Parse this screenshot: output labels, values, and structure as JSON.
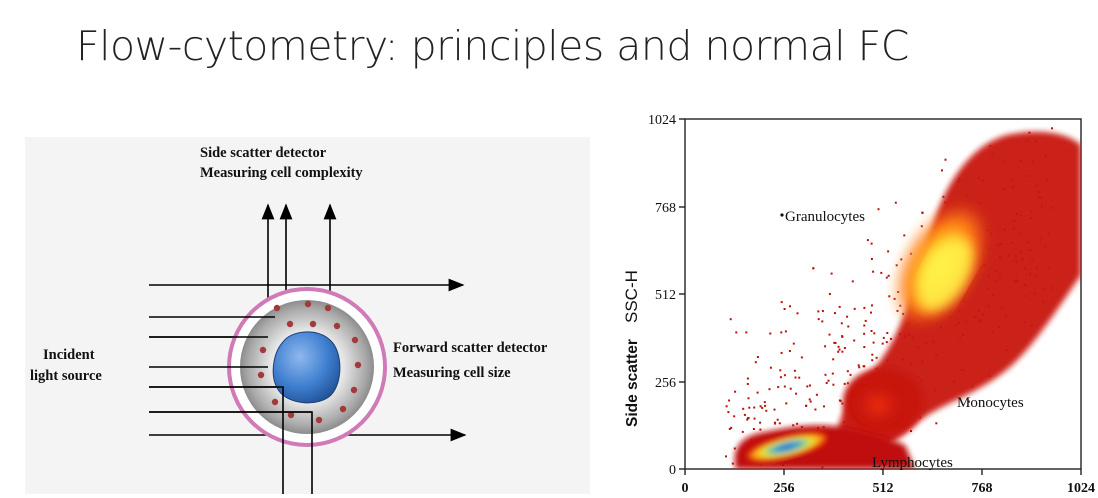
{
  "title": "Flow-cytometry: principles and normal FC",
  "diagram": {
    "side_detector_line1": "Side scatter detector",
    "side_detector_line2": "Measuring cell complexity",
    "forward_detector_line1": "Forward scatter detector",
    "forward_detector_line2": "Measuring cell size",
    "incident_line1": "Incident",
    "incident_line2": "light source"
  },
  "plot": {
    "ylabel_prefix": "Side scatter",
    "ylabel_suffix": "SSC-H",
    "y_ticks": [
      "0",
      "256",
      "512",
      "768",
      "1024"
    ],
    "x_ticks": [
      "0",
      "256",
      "512",
      "768",
      "1024"
    ],
    "populations": {
      "granulocytes": "Granulocytes",
      "monocytes": "Monocytes",
      "lymphocytes": "Lymphocytes"
    }
  },
  "colors": {
    "cell_outer_ring": "#d07ab8",
    "nucleus": "#3f7fd0",
    "granule": "#a33a3a",
    "density_low": "#c0100c",
    "density_mid": "#ff9b1a",
    "density_high": "#fff24a",
    "density_peak": "#2a6cf0"
  }
}
